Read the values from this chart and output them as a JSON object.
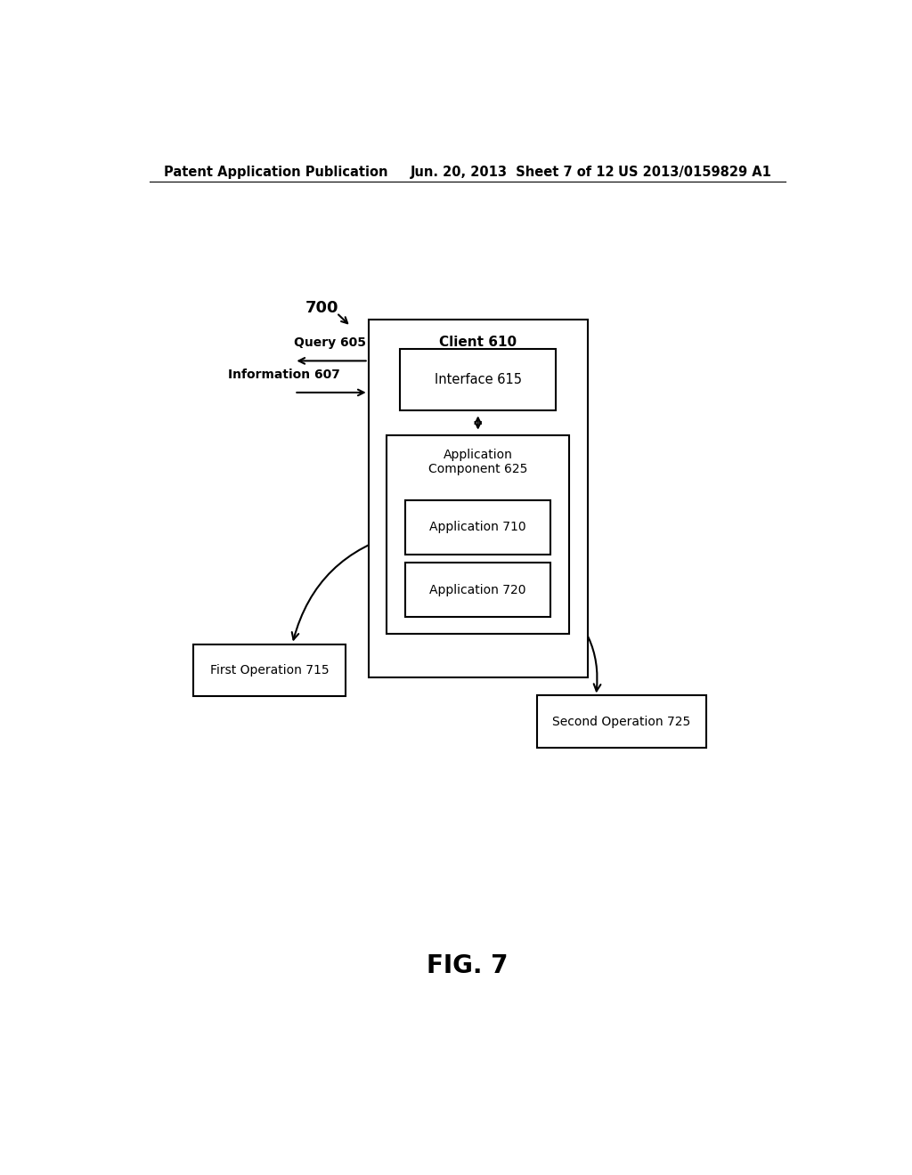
{
  "header_left": "Patent Application Publication",
  "header_center": "Jun. 20, 2013  Sheet 7 of 12",
  "header_right": "US 2013/0159829 A1",
  "figure_label": "FIG. 7",
  "fig_number": "700",
  "background_color": "#ffffff",
  "text_color": "#000000"
}
